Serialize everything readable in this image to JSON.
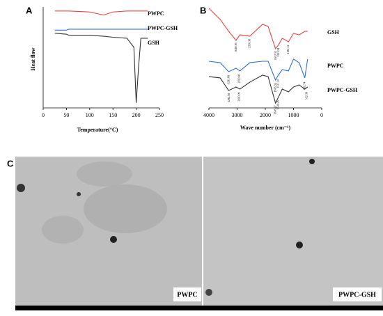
{
  "chart_data": [
    {
      "type": "line",
      "title": "A",
      "xlabel": "Temperature(°C)",
      "ylabel": "Heat flow",
      "x": [
        25,
        50,
        55,
        100,
        130,
        150,
        180,
        195,
        200,
        205,
        210,
        225
      ],
      "xlim": [
        0,
        250
      ],
      "xticks": [
        0,
        50,
        100,
        150,
        200,
        250
      ],
      "ylim": [
        0,
        100
      ],
      "series": [
        {
          "name": "PWPC",
          "color": "#e8423f",
          "values": [
            96,
            96,
            96,
            95,
            92,
            95,
            96,
            96,
            96,
            96,
            96,
            96
          ]
        },
        {
          "name": "PWPC-GSH",
          "color": "#2f6fd6",
          "values": [
            77,
            77,
            78,
            78,
            78,
            78,
            78,
            78,
            78,
            78,
            78,
            78
          ]
        },
        {
          "name": "GSH",
          "color": "#333333",
          "values": [
            74,
            73,
            72,
            72,
            71,
            70,
            69,
            60,
            5,
            40,
            69,
            69
          ]
        }
      ]
    },
    {
      "type": "line",
      "title": "B",
      "xlabel": "Wave number (cm⁻¹)",
      "x": [
        4000,
        3600,
        3300,
        3040,
        2900,
        2550,
        2100,
        1900,
        1640,
        1540,
        1400,
        1180,
        1000,
        800,
        600,
        500
      ],
      "xlim": [
        4000,
        0
      ],
      "xticks": [
        4000,
        3000,
        2000,
        1000,
        0
      ],
      "ylim": [
        0,
        100
      ],
      "series": [
        {
          "name": "GSH",
          "color": "#e8423f",
          "values": [
            98.6,
            87.6,
            75.9,
            66.9,
            72.4,
            71.0,
            82.8,
            80.7,
            58.6,
            62.1,
            69.0,
            65.5,
            73.8,
            72.4,
            75.9,
            75.9
          ]
        },
        {
          "name": "PWPC",
          "color": "#2f6fd6",
          "values": [
            46.2,
            44.8,
            35.9,
            39.3,
            36.6,
            44.8,
            46.2,
            46.2,
            27.6,
            32.4,
            37.9,
            36.6,
            48.3,
            44.8,
            29.7,
            48.3
          ]
        },
        {
          "name": "PWPC-GSH",
          "color": "#333333",
          "values": [
            31.0,
            29.7,
            17.2,
            20.7,
            18.6,
            25.5,
            32.4,
            31.0,
            4.8,
            10.3,
            18.6,
            15.9,
            20.7,
            22.8,
            18.6,
            20.7
          ]
        }
      ],
      "annotations": [
        {
          "text": "3040.36",
          "x": 3040,
          "y": 60
        },
        {
          "text": "2550.38",
          "x": 2550,
          "y": 64
        },
        {
          "text": "1632.32",
          "x": 1632,
          "y": 52
        },
        {
          "text": "1533.24",
          "x": 1533,
          "y": 55
        },
        {
          "text": "1181.12",
          "x": 1181,
          "y": 58
        },
        {
          "text": "3293.68",
          "x": 3293,
          "y": 28
        },
        {
          "text": "2930.46",
          "x": 2930,
          "y": 29
        },
        {
          "text": "1636.59",
          "x": 1636,
          "y": 20
        },
        {
          "text": "1537.20",
          "x": 1537,
          "y": 24
        },
        {
          "text": "602.74",
          "x": 602,
          "y": 22
        },
        {
          "text": "3282.58",
          "x": 3282,
          "y": 10
        },
        {
          "text": "2930.09",
          "x": 2930,
          "y": 11
        },
        {
          "text": "1636.37",
          "x": 1636,
          "y": -2
        },
        {
          "text": "1539.26",
          "x": 1539,
          "y": 3
        },
        {
          "text": "532.38",
          "x": 532,
          "y": 12
        }
      ]
    }
  ],
  "panel_c": {
    "label": "C",
    "images": [
      {
        "label": "PWPC"
      },
      {
        "label": "PWPC-GSH"
      }
    ]
  }
}
